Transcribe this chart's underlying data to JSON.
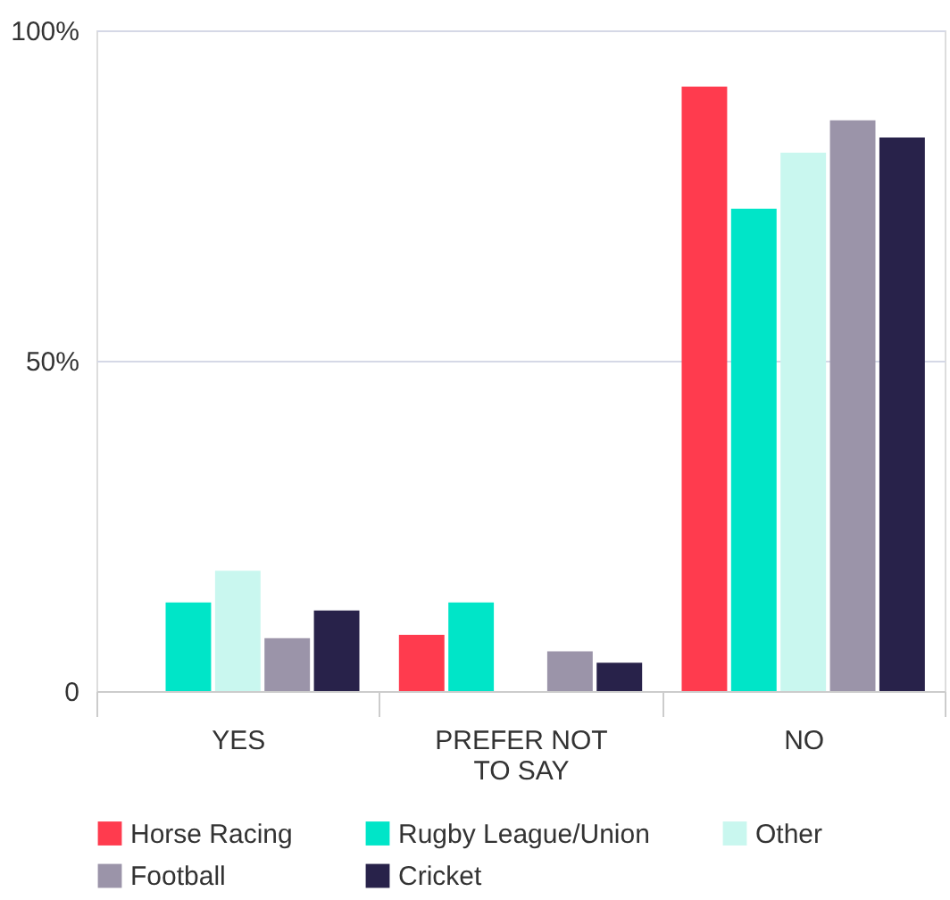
{
  "chart_data": {
    "type": "bar",
    "categories": [
      "YES",
      "PREFER NOT TO SAY",
      "NO"
    ],
    "series": [
      {
        "name": "Horse Racing",
        "color": "#ff3b4e",
        "values": [
          null,
          8.5,
          91.5
        ]
      },
      {
        "name": "Rugby League/Union",
        "color": "#00e5c8",
        "values": [
          13.4,
          13.4,
          73
        ]
      },
      {
        "name": "Other",
        "color": "#c9f7ef",
        "values": [
          18.2,
          null,
          81.5
        ]
      },
      {
        "name": "Football",
        "color": "#9b94a9",
        "values": [
          8,
          6,
          86.4
        ]
      },
      {
        "name": "Cricket",
        "color": "#28224a",
        "values": [
          12.2,
          4.3,
          83.8
        ]
      }
    ],
    "ylim": [
      0,
      100
    ],
    "yticks": [
      {
        "value": 0,
        "label": "0"
      },
      {
        "value": 50,
        "label": "50%"
      },
      {
        "value": 100,
        "label": "100%"
      }
    ],
    "grid": "y",
    "legend": "bottom"
  }
}
